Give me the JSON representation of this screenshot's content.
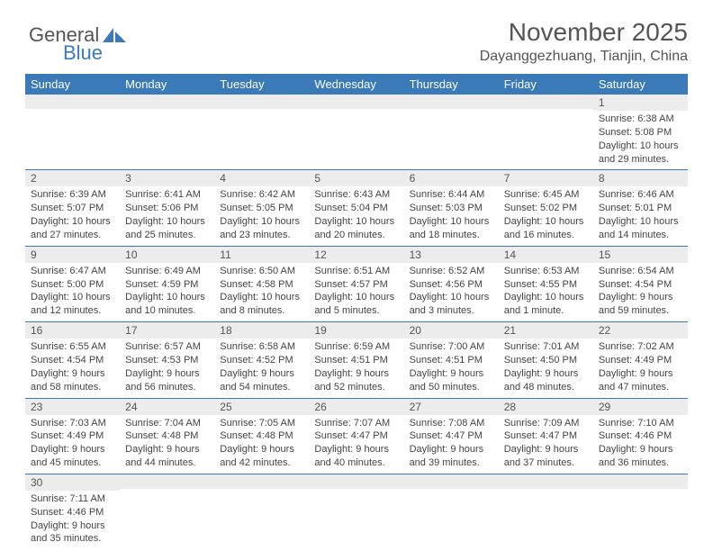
{
  "logo": {
    "text_a": "General",
    "text_b": "Blue",
    "accent_color": "#3a7ab8"
  },
  "header": {
    "title": "November 2025",
    "location": "Dayanggezhuang, Tianjin, China"
  },
  "colors": {
    "header_bg": "#3a7ab8",
    "header_fg": "#ffffff",
    "daynum_bg": "#ececec",
    "cell_border": "#3a7ab8",
    "text": "#444444",
    "background": "#ffffff"
  },
  "days_of_week": [
    "Sunday",
    "Monday",
    "Tuesday",
    "Wednesday",
    "Thursday",
    "Friday",
    "Saturday"
  ],
  "weeks": [
    [
      {
        "n": "",
        "sr": "",
        "ss": "",
        "dl": ""
      },
      {
        "n": "",
        "sr": "",
        "ss": "",
        "dl": ""
      },
      {
        "n": "",
        "sr": "",
        "ss": "",
        "dl": ""
      },
      {
        "n": "",
        "sr": "",
        "ss": "",
        "dl": ""
      },
      {
        "n": "",
        "sr": "",
        "ss": "",
        "dl": ""
      },
      {
        "n": "",
        "sr": "",
        "ss": "",
        "dl": ""
      },
      {
        "n": "1",
        "sr": "Sunrise: 6:38 AM",
        "ss": "Sunset: 5:08 PM",
        "dl": "Daylight: 10 hours and 29 minutes."
      }
    ],
    [
      {
        "n": "2",
        "sr": "Sunrise: 6:39 AM",
        "ss": "Sunset: 5:07 PM",
        "dl": "Daylight: 10 hours and 27 minutes."
      },
      {
        "n": "3",
        "sr": "Sunrise: 6:41 AM",
        "ss": "Sunset: 5:06 PM",
        "dl": "Daylight: 10 hours and 25 minutes."
      },
      {
        "n": "4",
        "sr": "Sunrise: 6:42 AM",
        "ss": "Sunset: 5:05 PM",
        "dl": "Daylight: 10 hours and 23 minutes."
      },
      {
        "n": "5",
        "sr": "Sunrise: 6:43 AM",
        "ss": "Sunset: 5:04 PM",
        "dl": "Daylight: 10 hours and 20 minutes."
      },
      {
        "n": "6",
        "sr": "Sunrise: 6:44 AM",
        "ss": "Sunset: 5:03 PM",
        "dl": "Daylight: 10 hours and 18 minutes."
      },
      {
        "n": "7",
        "sr": "Sunrise: 6:45 AM",
        "ss": "Sunset: 5:02 PM",
        "dl": "Daylight: 10 hours and 16 minutes."
      },
      {
        "n": "8",
        "sr": "Sunrise: 6:46 AM",
        "ss": "Sunset: 5:01 PM",
        "dl": "Daylight: 10 hours and 14 minutes."
      }
    ],
    [
      {
        "n": "9",
        "sr": "Sunrise: 6:47 AM",
        "ss": "Sunset: 5:00 PM",
        "dl": "Daylight: 10 hours and 12 minutes."
      },
      {
        "n": "10",
        "sr": "Sunrise: 6:49 AM",
        "ss": "Sunset: 4:59 PM",
        "dl": "Daylight: 10 hours and 10 minutes."
      },
      {
        "n": "11",
        "sr": "Sunrise: 6:50 AM",
        "ss": "Sunset: 4:58 PM",
        "dl": "Daylight: 10 hours and 8 minutes."
      },
      {
        "n": "12",
        "sr": "Sunrise: 6:51 AM",
        "ss": "Sunset: 4:57 PM",
        "dl": "Daylight: 10 hours and 5 minutes."
      },
      {
        "n": "13",
        "sr": "Sunrise: 6:52 AM",
        "ss": "Sunset: 4:56 PM",
        "dl": "Daylight: 10 hours and 3 minutes."
      },
      {
        "n": "14",
        "sr": "Sunrise: 6:53 AM",
        "ss": "Sunset: 4:55 PM",
        "dl": "Daylight: 10 hours and 1 minute."
      },
      {
        "n": "15",
        "sr": "Sunrise: 6:54 AM",
        "ss": "Sunset: 4:54 PM",
        "dl": "Daylight: 9 hours and 59 minutes."
      }
    ],
    [
      {
        "n": "16",
        "sr": "Sunrise: 6:55 AM",
        "ss": "Sunset: 4:54 PM",
        "dl": "Daylight: 9 hours and 58 minutes."
      },
      {
        "n": "17",
        "sr": "Sunrise: 6:57 AM",
        "ss": "Sunset: 4:53 PM",
        "dl": "Daylight: 9 hours and 56 minutes."
      },
      {
        "n": "18",
        "sr": "Sunrise: 6:58 AM",
        "ss": "Sunset: 4:52 PM",
        "dl": "Daylight: 9 hours and 54 minutes."
      },
      {
        "n": "19",
        "sr": "Sunrise: 6:59 AM",
        "ss": "Sunset: 4:51 PM",
        "dl": "Daylight: 9 hours and 52 minutes."
      },
      {
        "n": "20",
        "sr": "Sunrise: 7:00 AM",
        "ss": "Sunset: 4:51 PM",
        "dl": "Daylight: 9 hours and 50 minutes."
      },
      {
        "n": "21",
        "sr": "Sunrise: 7:01 AM",
        "ss": "Sunset: 4:50 PM",
        "dl": "Daylight: 9 hours and 48 minutes."
      },
      {
        "n": "22",
        "sr": "Sunrise: 7:02 AM",
        "ss": "Sunset: 4:49 PM",
        "dl": "Daylight: 9 hours and 47 minutes."
      }
    ],
    [
      {
        "n": "23",
        "sr": "Sunrise: 7:03 AM",
        "ss": "Sunset: 4:49 PM",
        "dl": "Daylight: 9 hours and 45 minutes."
      },
      {
        "n": "24",
        "sr": "Sunrise: 7:04 AM",
        "ss": "Sunset: 4:48 PM",
        "dl": "Daylight: 9 hours and 44 minutes."
      },
      {
        "n": "25",
        "sr": "Sunrise: 7:05 AM",
        "ss": "Sunset: 4:48 PM",
        "dl": "Daylight: 9 hours and 42 minutes."
      },
      {
        "n": "26",
        "sr": "Sunrise: 7:07 AM",
        "ss": "Sunset: 4:47 PM",
        "dl": "Daylight: 9 hours and 40 minutes."
      },
      {
        "n": "27",
        "sr": "Sunrise: 7:08 AM",
        "ss": "Sunset: 4:47 PM",
        "dl": "Daylight: 9 hours and 39 minutes."
      },
      {
        "n": "28",
        "sr": "Sunrise: 7:09 AM",
        "ss": "Sunset: 4:47 PM",
        "dl": "Daylight: 9 hours and 37 minutes."
      },
      {
        "n": "29",
        "sr": "Sunrise: 7:10 AM",
        "ss": "Sunset: 4:46 PM",
        "dl": "Daylight: 9 hours and 36 minutes."
      }
    ],
    [
      {
        "n": "30",
        "sr": "Sunrise: 7:11 AM",
        "ss": "Sunset: 4:46 PM",
        "dl": "Daylight: 9 hours and 35 minutes."
      },
      {
        "n": "",
        "sr": "",
        "ss": "",
        "dl": ""
      },
      {
        "n": "",
        "sr": "",
        "ss": "",
        "dl": ""
      },
      {
        "n": "",
        "sr": "",
        "ss": "",
        "dl": ""
      },
      {
        "n": "",
        "sr": "",
        "ss": "",
        "dl": ""
      },
      {
        "n": "",
        "sr": "",
        "ss": "",
        "dl": ""
      },
      {
        "n": "",
        "sr": "",
        "ss": "",
        "dl": ""
      }
    ]
  ]
}
